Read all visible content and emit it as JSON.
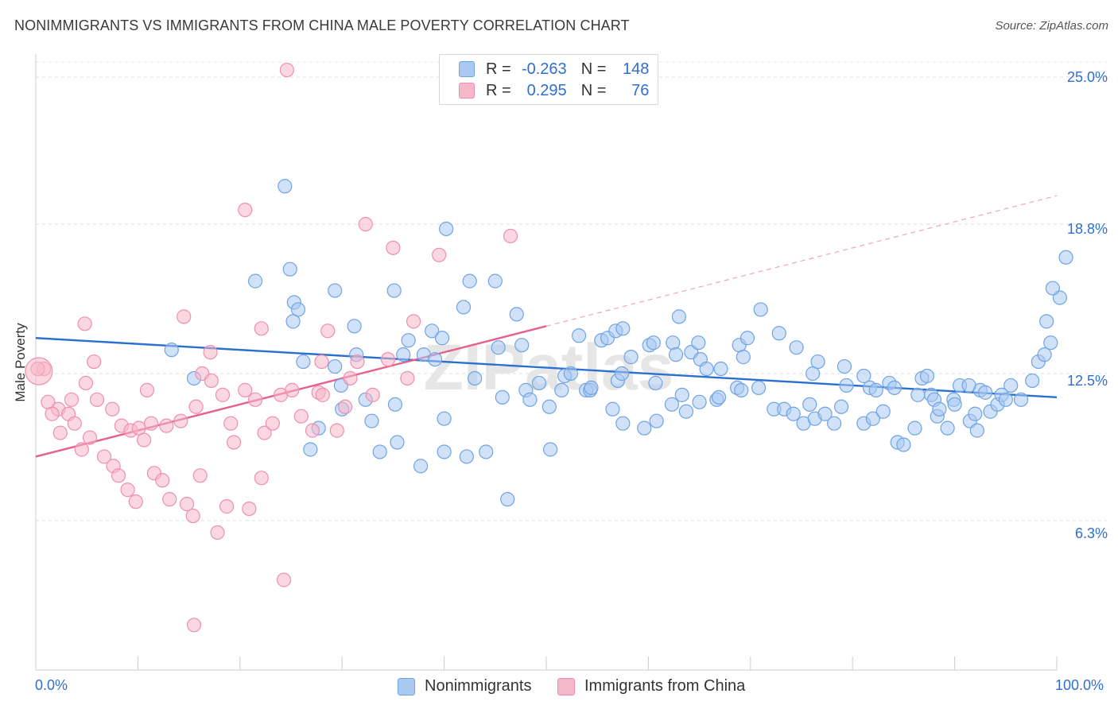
{
  "title": "NONIMMIGRANTS VS IMMIGRANTS FROM CHINA MALE POVERTY CORRELATION CHART",
  "source": "Source: ZipAtlas.com",
  "legend_stats": [
    {
      "r_label": "R =",
      "r_value": "-0.263",
      "n_label": "N =",
      "n_value": "148",
      "color": "#a9c9f2"
    },
    {
      "r_label": "R =",
      "r_value": "0.295",
      "n_label": "N =",
      "n_value": "76",
      "color": "#f6b7c9"
    }
  ],
  "bottom_legend": [
    {
      "label": "Nonimmigrants",
      "color": "#a9c9f2"
    },
    {
      "label": "Immigrants from China",
      "color": "#f6b7c9"
    }
  ],
  "watermark": "ZIPatlas",
  "chart_data": {
    "type": "scatter",
    "title": "NONIMMIGRANTS VS IMMIGRANTS FROM CHINA MALE POVERTY CORRELATION CHART",
    "xlabel": "",
    "ylabel": "Male Poverty",
    "xlim": [
      0,
      100
    ],
    "ylim": [
      0,
      26.5
    ],
    "x_tick_labels": [
      "0.0%",
      "100.0%"
    ],
    "y_ticks": [
      6.3,
      12.5,
      18.8,
      25.0
    ],
    "y_tick_labels": [
      "6.3%",
      "12.5%",
      "18.8%",
      "25.0%"
    ],
    "grid": "horizontal dashed",
    "legend_position": "top-center",
    "series": [
      {
        "name": "Nonimmigrants",
        "color": "#6fa4e4",
        "fill": "#a9c9f2",
        "trend": {
          "x": [
            0,
            100
          ],
          "y": [
            14.0,
            11.5
          ]
        },
        "points": [
          [
            24.4,
            20.4
          ],
          [
            40.2,
            18.6
          ],
          [
            24.9,
            16.9
          ],
          [
            21.5,
            16.4
          ],
          [
            29.3,
            16.0
          ],
          [
            35.1,
            16.0
          ],
          [
            42.5,
            16.4
          ],
          [
            45.0,
            16.4
          ],
          [
            25.3,
            15.5
          ],
          [
            25.7,
            15.2
          ],
          [
            41.9,
            15.3
          ],
          [
            47.1,
            15.0
          ],
          [
            25.2,
            14.7
          ],
          [
            31.2,
            14.5
          ],
          [
            38.8,
            14.3
          ],
          [
            63.0,
            14.9
          ],
          [
            71.0,
            15.2
          ],
          [
            39.8,
            14.0
          ],
          [
            36.5,
            13.9
          ],
          [
            45.3,
            13.6
          ],
          [
            47.6,
            13.7
          ],
          [
            53.2,
            14.1
          ],
          [
            55.4,
            13.9
          ],
          [
            56.0,
            14.0
          ],
          [
            56.8,
            14.3
          ],
          [
            57.5,
            14.4
          ],
          [
            58.3,
            13.2
          ],
          [
            60.1,
            13.7
          ],
          [
            60.5,
            13.8
          ],
          [
            60.7,
            12.1
          ],
          [
            62.4,
            13.8
          ],
          [
            62.7,
            13.3
          ],
          [
            64.2,
            13.4
          ],
          [
            64.9,
            13.8
          ],
          [
            65.1,
            13.1
          ],
          [
            65.7,
            12.7
          ],
          [
            67.1,
            12.7
          ],
          [
            68.9,
            13.7
          ],
          [
            69.3,
            13.2
          ],
          [
            69.7,
            14.0
          ],
          [
            72.8,
            14.2
          ],
          [
            74.5,
            13.6
          ],
          [
            76.1,
            12.5
          ],
          [
            76.6,
            13.0
          ],
          [
            79.2,
            12.8
          ],
          [
            79.4,
            12.0
          ],
          [
            81.1,
            12.4
          ],
          [
            81.7,
            11.9
          ],
          [
            82.3,
            11.8
          ],
          [
            83.6,
            12.1
          ],
          [
            84.1,
            11.9
          ],
          [
            86.4,
            11.6
          ],
          [
            86.8,
            12.3
          ],
          [
            87.3,
            12.4
          ],
          [
            87.7,
            11.6
          ],
          [
            88.0,
            11.4
          ],
          [
            88.3,
            10.7
          ],
          [
            89.3,
            10.2
          ],
          [
            89.9,
            11.4
          ],
          [
            90.5,
            12.0
          ],
          [
            91.5,
            10.5
          ],
          [
            92.2,
            10.1
          ],
          [
            92.5,
            11.8
          ],
          [
            93.0,
            11.7
          ],
          [
            93.5,
            10.9
          ],
          [
            94.2,
            11.2
          ],
          [
            94.6,
            11.6
          ],
          [
            95.0,
            11.4
          ],
          [
            95.5,
            12.0
          ],
          [
            96.5,
            11.4
          ],
          [
            97.6,
            12.2
          ],
          [
            98.2,
            13.0
          ],
          [
            98.8,
            13.3
          ],
          [
            99.4,
            13.8
          ],
          [
            99.0,
            14.7
          ],
          [
            100.3,
            15.7
          ],
          [
            100.9,
            17.4
          ],
          [
            99.6,
            16.1
          ],
          [
            13.3,
            13.5
          ],
          [
            26.2,
            13.0
          ],
          [
            27.7,
            10.2
          ],
          [
            29.9,
            12.0
          ],
          [
            30.0,
            11.0
          ],
          [
            31.4,
            13.3
          ],
          [
            32.3,
            11.4
          ],
          [
            32.9,
            10.5
          ],
          [
            36.0,
            13.3
          ],
          [
            33.7,
            9.2
          ],
          [
            35.2,
            11.2
          ],
          [
            37.7,
            8.6
          ],
          [
            38.0,
            13.3
          ],
          [
            39.1,
            13.1
          ],
          [
            40.0,
            10.6
          ],
          [
            43.0,
            12.3
          ],
          [
            44.1,
            9.2
          ],
          [
            45.7,
            11.5
          ],
          [
            48.0,
            11.8
          ],
          [
            48.4,
            11.4
          ],
          [
            49.3,
            12.1
          ],
          [
            50.3,
            11.1
          ],
          [
            51.5,
            11.8
          ],
          [
            51.8,
            12.4
          ],
          [
            52.4,
            12.5
          ],
          [
            53.9,
            11.8
          ],
          [
            54.3,
            11.8
          ],
          [
            56.5,
            11.0
          ],
          [
            57.0,
            12.2
          ],
          [
            57.5,
            10.4
          ],
          [
            59.6,
            10.2
          ],
          [
            60.8,
            10.5
          ],
          [
            62.3,
            11.2
          ],
          [
            63.3,
            11.6
          ],
          [
            63.7,
            10.9
          ],
          [
            65.0,
            11.3
          ],
          [
            66.7,
            11.4
          ],
          [
            66.9,
            11.5
          ],
          [
            68.7,
            11.9
          ],
          [
            69.1,
            11.8
          ],
          [
            70.8,
            11.9
          ],
          [
            72.3,
            11.0
          ],
          [
            73.3,
            11.0
          ],
          [
            74.2,
            10.8
          ],
          [
            75.2,
            10.4
          ],
          [
            75.8,
            11.2
          ],
          [
            76.3,
            10.6
          ],
          [
            77.3,
            10.8
          ],
          [
            78.2,
            10.4
          ],
          [
            78.9,
            11.1
          ],
          [
            81.1,
            10.4
          ],
          [
            82.0,
            10.6
          ],
          [
            83.0,
            10.9
          ],
          [
            84.4,
            9.6
          ],
          [
            85.0,
            9.5
          ],
          [
            86.1,
            10.2
          ],
          [
            88.5,
            11.0
          ],
          [
            90.0,
            11.2
          ],
          [
            91.4,
            12.0
          ],
          [
            92.0,
            10.8
          ],
          [
            15.5,
            12.3
          ],
          [
            26.9,
            9.3
          ],
          [
            29.3,
            12.8
          ],
          [
            35.4,
            9.6
          ],
          [
            40.0,
            9.2
          ],
          [
            42.2,
            9.0
          ],
          [
            46.2,
            7.2
          ],
          [
            50.4,
            9.3
          ],
          [
            54.4,
            11.9
          ],
          [
            57.4,
            12.5
          ]
        ]
      },
      {
        "name": "Immigrants from China",
        "color": "#ee8fb0",
        "fill": "#f6b7c9",
        "trend": {
          "x": [
            0,
            50
          ],
          "y": [
            9.0,
            14.5
          ]
        },
        "trend_extension": {
          "x": [
            50,
            100
          ],
          "y": [
            14.5,
            20.0
          ]
        },
        "points": [
          [
            24.6,
            25.3
          ],
          [
            20.5,
            19.4
          ],
          [
            32.3,
            18.8
          ],
          [
            35.0,
            17.8
          ],
          [
            39.5,
            17.5
          ],
          [
            46.5,
            18.3
          ],
          [
            14.5,
            14.9
          ],
          [
            28.6,
            14.3
          ],
          [
            37.0,
            14.7
          ],
          [
            4.8,
            14.6
          ],
          [
            17.1,
            13.4
          ],
          [
            16.3,
            12.5
          ],
          [
            22.1,
            14.4
          ],
          [
            28.0,
            13.0
          ],
          [
            0.8,
            12.7
          ],
          [
            1.2,
            11.3
          ],
          [
            2.2,
            11.0
          ],
          [
            3.5,
            11.4
          ],
          [
            4.9,
            12.1
          ],
          [
            5.7,
            13.0
          ],
          [
            6.0,
            11.4
          ],
          [
            7.5,
            11.0
          ],
          [
            8.4,
            10.3
          ],
          [
            9.3,
            10.1
          ],
          [
            10.1,
            10.2
          ],
          [
            10.9,
            11.8
          ],
          [
            11.3,
            10.4
          ],
          [
            12.8,
            10.3
          ],
          [
            14.2,
            10.5
          ],
          [
            15.7,
            11.1
          ],
          [
            17.2,
            12.2
          ],
          [
            18.3,
            11.6
          ],
          [
            19.1,
            10.4
          ],
          [
            19.4,
            9.6
          ],
          [
            20.5,
            11.8
          ],
          [
            21.5,
            11.4
          ],
          [
            22.4,
            10.0
          ],
          [
            23.2,
            10.4
          ],
          [
            24.0,
            11.6
          ],
          [
            25.1,
            11.8
          ],
          [
            26.0,
            10.7
          ],
          [
            27.1,
            10.1
          ],
          [
            27.7,
            11.7
          ],
          [
            28.1,
            11.6
          ],
          [
            29.5,
            10.1
          ],
          [
            30.3,
            11.1
          ],
          [
            30.8,
            12.3
          ],
          [
            31.5,
            13.0
          ],
          [
            33.0,
            11.6
          ],
          [
            34.5,
            13.1
          ],
          [
            36.4,
            12.3
          ],
          [
            0.2,
            12.7
          ],
          [
            1.6,
            10.8
          ],
          [
            2.4,
            10.0
          ],
          [
            3.2,
            10.8
          ],
          [
            3.8,
            10.4
          ],
          [
            4.5,
            9.3
          ],
          [
            5.3,
            9.8
          ],
          [
            6.7,
            9.0
          ],
          [
            7.6,
            8.6
          ],
          [
            8.1,
            8.2
          ],
          [
            9.0,
            7.6
          ],
          [
            9.8,
            7.1
          ],
          [
            10.6,
            9.7
          ],
          [
            11.6,
            8.3
          ],
          [
            12.4,
            8.0
          ],
          [
            13.1,
            7.2
          ],
          [
            14.8,
            7.0
          ],
          [
            15.4,
            6.5
          ],
          [
            16.1,
            8.2
          ],
          [
            17.8,
            5.8
          ],
          [
            18.7,
            6.9
          ],
          [
            20.9,
            6.8
          ],
          [
            22.1,
            8.1
          ],
          [
            24.3,
            3.8
          ],
          [
            15.5,
            1.9
          ]
        ]
      }
    ]
  }
}
